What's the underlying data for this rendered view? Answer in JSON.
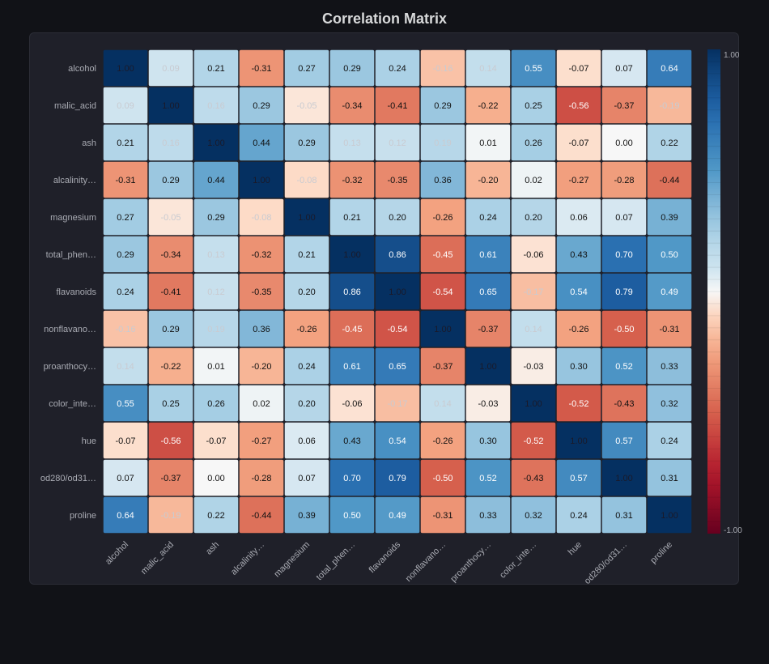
{
  "title": "Correlation Matrix",
  "chart_data": {
    "type": "heatmap",
    "title": "Correlation Matrix",
    "row_labels": [
      "alcohol",
      "malic_acid",
      "ash",
      "alcalinity…",
      "magnesium",
      "total_phen…",
      "flavanoids",
      "nonflavano…",
      "proanthocy…",
      "color_inte…",
      "hue",
      "od280/od31…",
      "proline"
    ],
    "col_labels": [
      "alcohol",
      "malic_acid",
      "ash",
      "alcalinity…",
      "magnesium",
      "total_phen…",
      "flavanoids",
      "nonflavano…",
      "proanthocy…",
      "color_inte…",
      "hue",
      "od280/od31…",
      "proline"
    ],
    "values": [
      [
        1.0,
        0.09,
        0.21,
        -0.31,
        0.27,
        0.29,
        0.24,
        -0.16,
        0.14,
        0.55,
        -0.07,
        0.07,
        0.64
      ],
      [
        0.09,
        1.0,
        0.16,
        0.29,
        -0.05,
        -0.34,
        -0.41,
        0.29,
        -0.22,
        0.25,
        -0.56,
        -0.37,
        -0.19
      ],
      [
        0.21,
        0.16,
        1.0,
        0.44,
        0.29,
        0.13,
        0.12,
        0.19,
        0.01,
        0.26,
        -0.07,
        0.0,
        0.22
      ],
      [
        -0.31,
        0.29,
        0.44,
        1.0,
        -0.08,
        -0.32,
        -0.35,
        0.36,
        -0.2,
        0.02,
        -0.27,
        -0.28,
        -0.44
      ],
      [
        0.27,
        -0.05,
        0.29,
        -0.08,
        1.0,
        0.21,
        0.2,
        -0.26,
        0.24,
        0.2,
        0.06,
        0.07,
        0.39
      ],
      [
        0.29,
        -0.34,
        0.13,
        -0.32,
        0.21,
        1.0,
        0.86,
        -0.45,
        0.61,
        -0.06,
        0.43,
        0.7,
        0.5
      ],
      [
        0.24,
        -0.41,
        0.12,
        -0.35,
        0.2,
        0.86,
        1.0,
        -0.54,
        0.65,
        -0.17,
        0.54,
        0.79,
        0.49
      ],
      [
        -0.16,
        0.29,
        0.19,
        0.36,
        -0.26,
        -0.45,
        -0.54,
        1.0,
        -0.37,
        0.14,
        -0.26,
        -0.5,
        -0.31
      ],
      [
        0.14,
        -0.22,
        0.01,
        -0.2,
        0.24,
        0.61,
        0.65,
        -0.37,
        1.0,
        -0.03,
        0.3,
        0.52,
        0.33
      ],
      [
        0.55,
        0.25,
        0.26,
        0.02,
        0.2,
        -0.06,
        -0.17,
        0.14,
        -0.03,
        1.0,
        -0.52,
        -0.43,
        0.32
      ],
      [
        -0.07,
        -0.56,
        -0.07,
        -0.27,
        0.06,
        0.43,
        0.54,
        -0.26,
        0.3,
        -0.52,
        1.0,
        0.57,
        0.24
      ],
      [
        0.07,
        -0.37,
        0.0,
        -0.28,
        0.07,
        0.7,
        0.79,
        -0.5,
        0.52,
        -0.43,
        0.57,
        1.0,
        0.31
      ],
      [
        0.64,
        -0.19,
        0.22,
        -0.44,
        0.39,
        0.5,
        0.49,
        -0.31,
        0.33,
        0.32,
        0.24,
        0.31,
        1.0
      ]
    ],
    "color_scale": {
      "min": -1.0,
      "max": 1.0,
      "min_label": "-1.00",
      "max_label": "1.00",
      "low_color": "#67001f",
      "mid_color": "#f7f7f7",
      "high_color": "#053061"
    },
    "legend_placement": "right"
  }
}
